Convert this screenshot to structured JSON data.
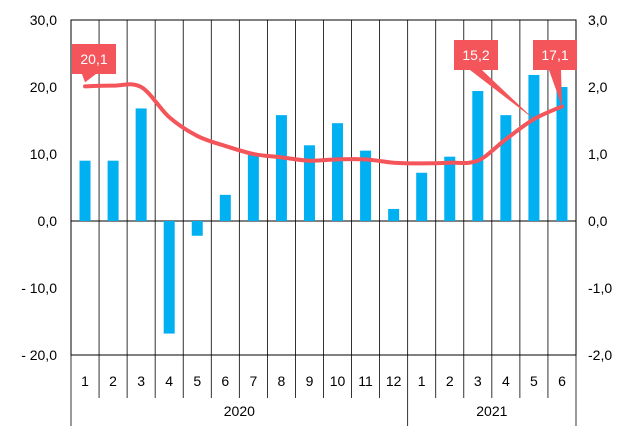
{
  "chart_data": {
    "type": "bar",
    "categories": [
      "1",
      "2",
      "3",
      "4",
      "5",
      "6",
      "7",
      "8",
      "9",
      "10",
      "11",
      "12",
      "1",
      "2",
      "3",
      "4",
      "5",
      "6"
    ],
    "years": [
      {
        "label": "2020",
        "from": 0,
        "to": 11
      },
      {
        "label": "2021",
        "from": 12,
        "to": 17
      }
    ],
    "series": [
      {
        "type": "bar",
        "axis": "left",
        "values": [
          9.0,
          9.0,
          16.8,
          -16.8,
          -2.2,
          3.9,
          10.1,
          15.8,
          11.3,
          14.6,
          10.5,
          1.8,
          7.2,
          9.6,
          19.4,
          15.8,
          21.8,
          20.0
        ]
      },
      {
        "type": "line",
        "axis": "right",
        "values": [
          2.01,
          2.02,
          2.0,
          1.55,
          1.27,
          1.12,
          1.0,
          0.95,
          0.9,
          0.92,
          0.92,
          0.87,
          0.86,
          0.87,
          0.9,
          1.22,
          1.52,
          1.71
        ]
      }
    ],
    "left_axis": {
      "min": -20,
      "max": 30,
      "step": 10,
      "labels": [
        "- 20,0",
        "- 10,0",
        "0,0",
        "10,0",
        "20,0",
        "30,0"
      ]
    },
    "right_axis": {
      "min": -2,
      "max": 3,
      "step": 1,
      "labels": [
        "-2,0",
        "-1,0",
        "0,0",
        "1,0",
        "2,0",
        "3,0"
      ]
    },
    "annotations": [
      {
        "text": "20,1",
        "index": 0
      },
      {
        "text": "15,2",
        "index": 16
      },
      {
        "text": "17,1",
        "index": 17
      }
    ],
    "grid": "vertical",
    "colors": {
      "bar": "#00b0f0",
      "line": "#f4555a",
      "callout": "#f4555a",
      "grid": "#000000"
    }
  }
}
